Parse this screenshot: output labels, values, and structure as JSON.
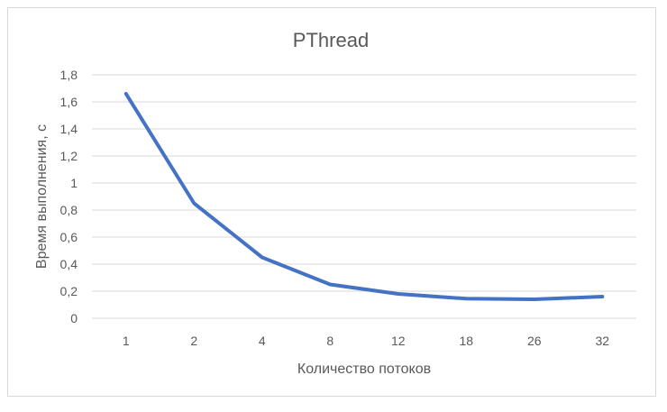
{
  "chart_data": {
    "type": "line",
    "title": "PThread",
    "xlabel": "Количество потоков",
    "ylabel": "Время выполнения, с",
    "categories": [
      "1",
      "2",
      "4",
      "8",
      "12",
      "18",
      "26",
      "32"
    ],
    "series": [
      {
        "values": [
          1.66,
          0.85,
          0.45,
          0.25,
          0.18,
          0.145,
          0.14,
          0.16
        ],
        "color": "#4472c4"
      }
    ],
    "ylim": [
      0,
      1.8
    ],
    "yticks": [
      "0",
      "0,2",
      "0,4",
      "0,6",
      "0,8",
      "1",
      "1,2",
      "1,4",
      "1,6",
      "1,8"
    ],
    "grid": true,
    "legend": "none",
    "colors": {
      "gridline": "#d9d9d9",
      "text": "#595959",
      "frame": "#d9d9d9"
    }
  }
}
